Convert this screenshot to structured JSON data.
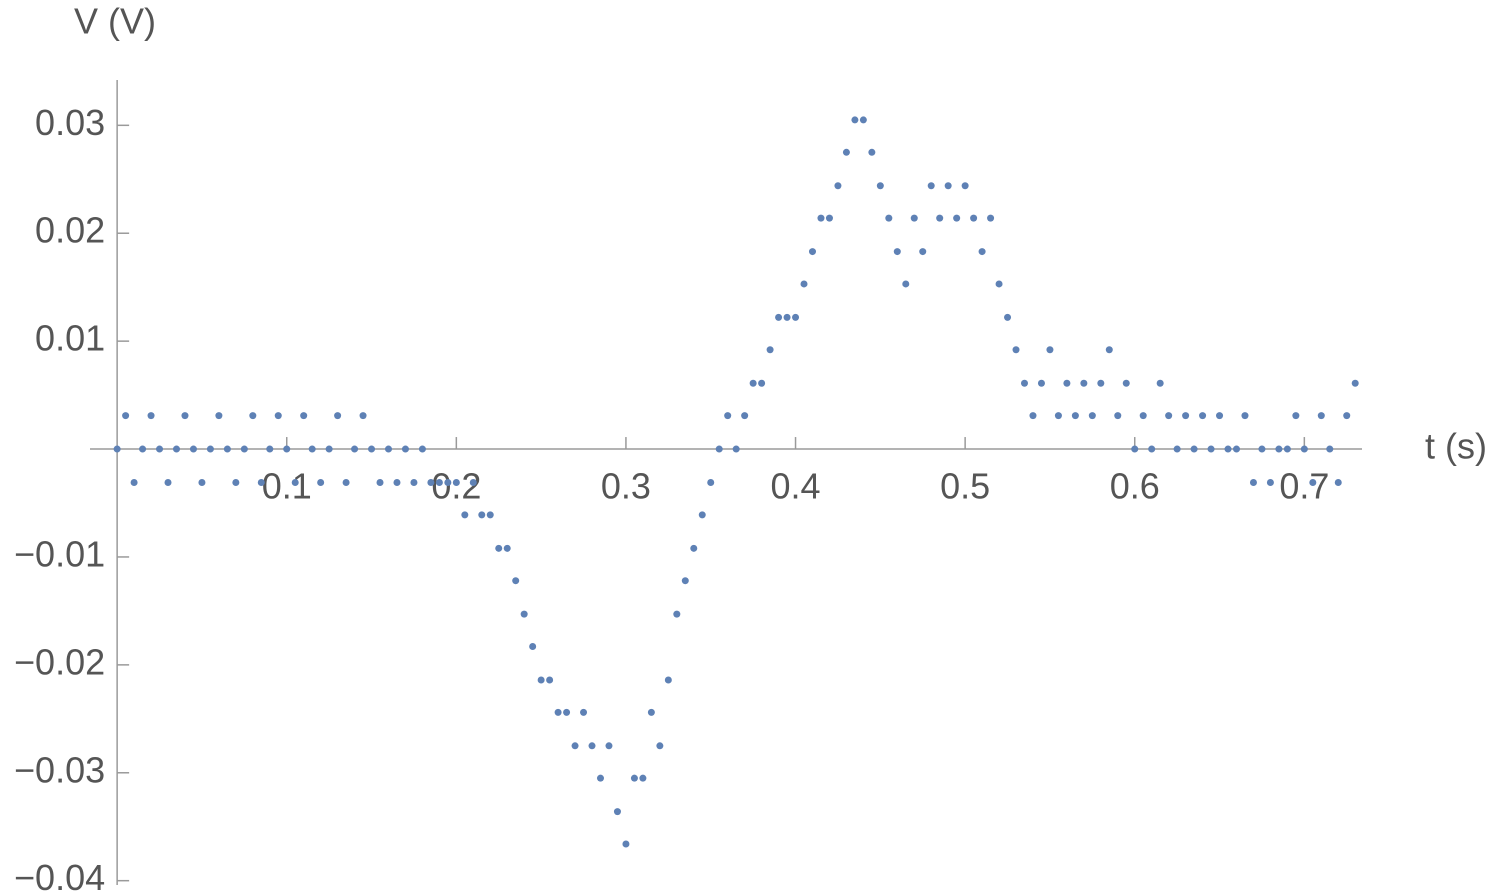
{
  "chart_data": {
    "type": "scatter",
    "x_label": "t (s)",
    "y_label": "V (V)",
    "color": "#5e81b5",
    "xlim": [
      -0.016,
      0.734
    ],
    "ylim": [
      -0.0404,
      0.0342
    ],
    "xticks": [
      0.1,
      0.2,
      0.3,
      0.4,
      0.5,
      0.6,
      0.7
    ],
    "yticks": [
      {
        "value": -0.04,
        "label": "−0.04"
      },
      {
        "value": -0.03,
        "label": "−0.03"
      },
      {
        "value": -0.02,
        "label": "−0.02"
      },
      {
        "value": -0.01,
        "label": "−0.01"
      },
      0.01,
      0.02,
      0.03
    ],
    "x": [
      0,
      0.005,
      0.01,
      0.015,
      0.02,
      0.025,
      0.03,
      0.035,
      0.04,
      0.045,
      0.05,
      0.055,
      0.06,
      0.065,
      0.07,
      0.075,
      0.08,
      0.085,
      0.09,
      0.095,
      0.1,
      0.105,
      0.11,
      0.115,
      0.12,
      0.125,
      0.13,
      0.135,
      0.14,
      0.145,
      0.15,
      0.155,
      0.16,
      0.165,
      0.17,
      0.175,
      0.18,
      0.185,
      0.19,
      0.195,
      0.2,
      0.205,
      0.21,
      0.215,
      0.22,
      0.225,
      0.23,
      0.235,
      0.24,
      0.245,
      0.25,
      0.255,
      0.26,
      0.265,
      0.27,
      0.275,
      0.28,
      0.285,
      0.29,
      0.295,
      0.3,
      0.305,
      0.31,
      0.315,
      0.32,
      0.325,
      0.33,
      0.335,
      0.34,
      0.345,
      0.35,
      0.355,
      0.36,
      0.365,
      0.37,
      0.375,
      0.38,
      0.385,
      0.39,
      0.395,
      0.4,
      0.405,
      0.41,
      0.415,
      0.42,
      0.425,
      0.43,
      0.435,
      0.44,
      0.445,
      0.45,
      0.455,
      0.46,
      0.465,
      0.47,
      0.475,
      0.48,
      0.485,
      0.49,
      0.495,
      0.5,
      0.505,
      0.51,
      0.515,
      0.52,
      0.525,
      0.53,
      0.535,
      0.54,
      0.545,
      0.55,
      0.555,
      0.56,
      0.565,
      0.57,
      0.575,
      0.58,
      0.585,
      0.59,
      0.595,
      0.6,
      0.605,
      0.61,
      0.615,
      0.62,
      0.625,
      0.63,
      0.635,
      0.64,
      0.645,
      0.65,
      0.655,
      0.66,
      0.665,
      0.67,
      0.675,
      0.68,
      0.685,
      0.69,
      0.695,
      0.7,
      0.705,
      0.71,
      0.715,
      0.72,
      0.725,
      0.73
    ],
    "values": [
      0,
      0.0031,
      -0.0031,
      0,
      0.0031,
      0,
      -0.0031,
      0,
      0.0031,
      0,
      -0.0031,
      0,
      0.0031,
      0,
      -0.0031,
      0,
      0.0031,
      -0.0031,
      0,
      0.0031,
      0,
      -0.0031,
      0.0031,
      0,
      -0.0031,
      0,
      0.0031,
      -0.0031,
      0,
      0.0031,
      0,
      -0.0031,
      0,
      -0.0031,
      0,
      -0.0031,
      0,
      -0.0031,
      -0.0031,
      -0.0031,
      -0.0031,
      -0.0061,
      -0.0031,
      -0.0061,
      -0.0061,
      -0.0092,
      -0.0092,
      -0.0122,
      -0.0153,
      -0.0183,
      -0.0214,
      -0.0214,
      -0.0244,
      -0.0244,
      -0.0275,
      -0.0244,
      -0.0275,
      -0.0305,
      -0.0275,
      -0.0336,
      -0.0366,
      -0.0305,
      -0.0305,
      -0.0244,
      -0.0275,
      -0.0214,
      -0.0153,
      -0.0122,
      -0.0092,
      -0.0061,
      -0.0031,
      0,
      0.0031,
      0,
      0.0031,
      0.0061,
      0.0061,
      0.0092,
      0.0122,
      0.0122,
      0.0122,
      0.0153,
      0.0183,
      0.0214,
      0.0214,
      0.0244,
      0.0275,
      0.0305,
      0.0305,
      0.0275,
      0.0244,
      0.0214,
      0.0183,
      0.0153,
      0.0214,
      0.0183,
      0.0244,
      0.0214,
      0.0244,
      0.0214,
      0.0244,
      0.0214,
      0.0183,
      0.0214,
      0.0153,
      0.0122,
      0.0092,
      0.0061,
      0.0031,
      0.0061,
      0.0092,
      0.0031,
      0.0061,
      0.0031,
      0.0061,
      0.0031,
      0.0061,
      0.0092,
      0.0031,
      0.0061,
      0,
      0.0031,
      0,
      0.0061,
      0.0031,
      0,
      0.0031,
      0,
      0.0031,
      0,
      0.0031,
      0,
      0,
      0.0031,
      -0.0031,
      0,
      -0.0031,
      0,
      0,
      0.0031,
      0,
      -0.0031,
      0.0031,
      0,
      -0.0031,
      0.0031,
      0.0061
    ]
  }
}
